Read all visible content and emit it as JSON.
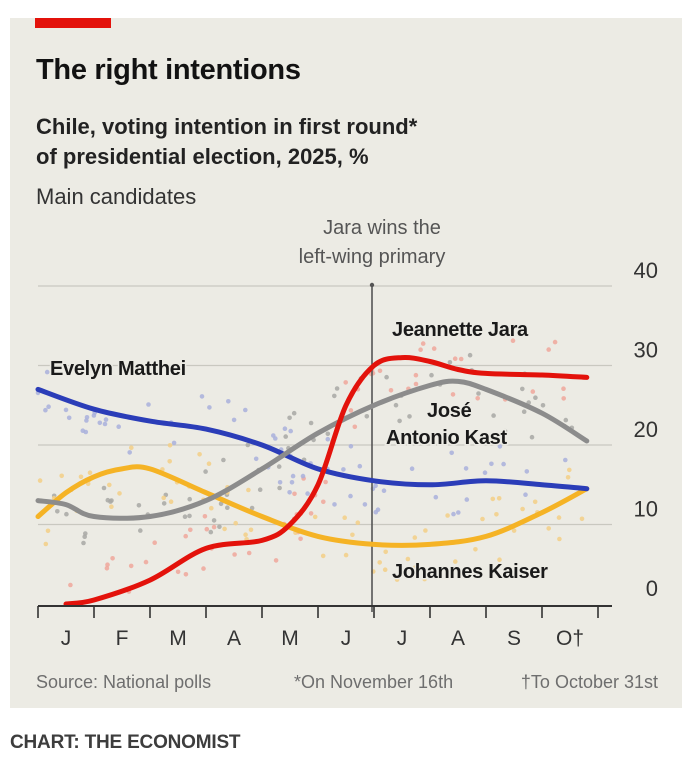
{
  "header": {
    "title": "The right intentions",
    "subtitle_line1": "Chile, voting intention in first round*",
    "subtitle_line2": "of presidential election, 2025, %",
    "subsubtitle": "Main candidates"
  },
  "footer": {
    "source": "Source: National polls",
    "note1": "*On November 16th",
    "note2": "†To October 31st",
    "credit": "CHART: THE ECONOMIST"
  },
  "chart_data": {
    "type": "line",
    "title": "The right intentions",
    "subtitle": "Chile, voting intention in first round* of presidential election, 2025, %",
    "xlabel": "",
    "ylabel": "%",
    "x_ticks": [
      "J",
      "F",
      "M",
      "A",
      "M",
      "J",
      "J",
      "A",
      "S",
      "O†"
    ],
    "x_range_months": [
      0,
      10
    ],
    "ylim": [
      0,
      40
    ],
    "y_ticks": [
      0,
      10,
      20,
      30,
      40
    ],
    "grid": true,
    "y_axis_side": "right",
    "annotation": {
      "text_line1": "Jara wins the",
      "text_line2": "left-wing primary",
      "x_month": 6.0
    },
    "series": [
      {
        "name": "Jeannette Jara",
        "color": "#e3120b",
        "x": [
          0.5,
          1.0,
          2.0,
          3.0,
          4.0,
          4.5,
          5.0,
          5.5,
          6.0,
          6.5,
          7.0,
          7.5,
          8.0,
          9.0,
          9.8
        ],
        "values": [
          0.0,
          0.5,
          3.0,
          7.0,
          8.0,
          10.0,
          15.0,
          25.0,
          30.0,
          31.0,
          30.5,
          29.5,
          29.0,
          28.8,
          28.5
        ]
      },
      {
        "name": "José Antonio Kast",
        "color": "#8c8c8c",
        "x": [
          0.0,
          0.5,
          1.0,
          2.0,
          3.0,
          4.0,
          5.0,
          6.0,
          7.0,
          7.5,
          8.0,
          9.0,
          9.8
        ],
        "values": [
          13.0,
          12.5,
          11.0,
          11.0,
          13.0,
          17.0,
          21.5,
          25.0,
          27.5,
          28.0,
          27.0,
          24.0,
          20.5
        ]
      },
      {
        "name": "Evelyn Matthei",
        "color": "#2b3db8",
        "x": [
          0.0,
          1.0,
          2.0,
          3.0,
          4.0,
          5.0,
          6.0,
          7.0,
          8.0,
          9.0,
          9.8
        ],
        "values": [
          27.0,
          24.5,
          23.0,
          22.0,
          20.0,
          17.0,
          15.5,
          15.0,
          15.5,
          15.0,
          14.5
        ]
      },
      {
        "name": "Johannes Kaiser",
        "color": "#f5b325",
        "x": [
          0.0,
          0.5,
          1.0,
          1.5,
          2.0,
          3.0,
          4.0,
          5.0,
          6.0,
          7.0,
          8.0,
          9.0,
          9.8
        ],
        "values": [
          11.0,
          14.0,
          16.0,
          17.0,
          17.0,
          14.0,
          11.0,
          8.5,
          7.5,
          7.5,
          8.5,
          11.5,
          14.5
        ]
      }
    ],
    "labels": [
      {
        "series": "Evelyn Matthei",
        "text": "Evelyn Matthei"
      },
      {
        "series": "Jeannette Jara",
        "text": "Jeannette Jara"
      },
      {
        "series": "José Antonio Kast",
        "text_line1": "José",
        "text_line2": "Antonio Kast"
      },
      {
        "series": "Johannes Kaiser",
        "text": "Johannes Kaiser"
      }
    ]
  }
}
